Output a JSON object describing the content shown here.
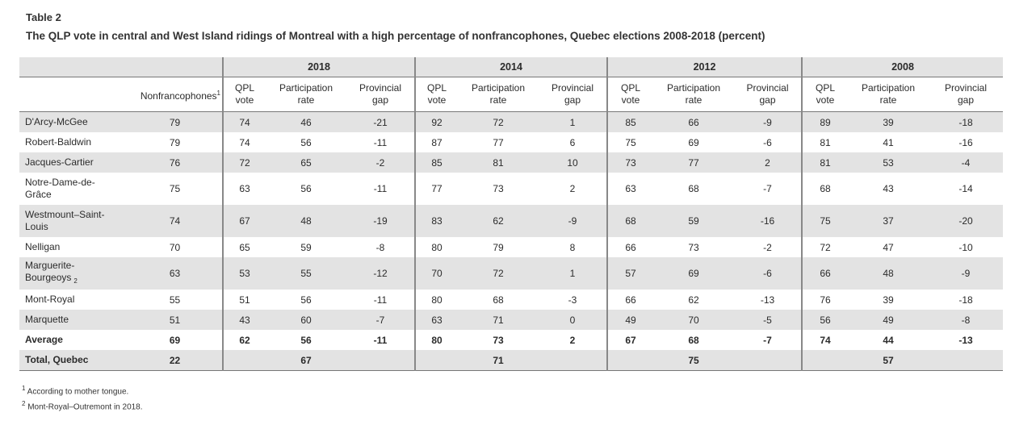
{
  "label": "Table 2",
  "title": "The QLP vote in central and West Island ridings of Montreal with a high percentage of nonfrancophones, Quebec elections 2008-2018 (percent)",
  "years": [
    "2018",
    "2014",
    "2012",
    "2008"
  ],
  "nonfranco_header": "Nonfrancophones",
  "nonfranco_sup": "1",
  "sub_headers": {
    "qpl_line1": "QPL",
    "qpl_line2": "vote",
    "part_line1": "Participation",
    "part_line2": "rate",
    "gap_line1": "Provincial",
    "gap_line2": "gap"
  },
  "rows": [
    {
      "region": "D'Arcy-McGee",
      "nf": "79",
      "v": [
        "74",
        "46",
        "-21",
        "92",
        "72",
        "1",
        "85",
        "66",
        "-9",
        "89",
        "39",
        "-18"
      ]
    },
    {
      "region": "Robert-Baldwin",
      "nf": "79",
      "v": [
        "74",
        "56",
        "-11",
        "87",
        "77",
        "6",
        "75",
        "69",
        "-6",
        "81",
        "41",
        "-16"
      ]
    },
    {
      "region": "Jacques-Cartier",
      "nf": "76",
      "v": [
        "72",
        "65",
        "-2",
        "85",
        "81",
        "10",
        "73",
        "77",
        "2",
        "81",
        "53",
        "-4"
      ]
    },
    {
      "region": "Notre-Dame-de-Grâce",
      "region_line1": "Notre-Dame-de-",
      "region_line2": "Grâce",
      "nf": "75",
      "v": [
        "63",
        "56",
        "-11",
        "77",
        "73",
        "2",
        "63",
        "68",
        "-7",
        "68",
        "43",
        "-14"
      ]
    },
    {
      "region": "Westmount–Saint-Louis",
      "region_line1": "Westmount–Saint-",
      "region_line2": "Louis",
      "nf": "74",
      "v": [
        "67",
        "48",
        "-19",
        "83",
        "62",
        "-9",
        "68",
        "59",
        "-16",
        "75",
        "37",
        "-20"
      ]
    },
    {
      "region": "Nelligan",
      "nf": "70",
      "v": [
        "65",
        "59",
        "-8",
        "80",
        "79",
        "8",
        "66",
        "73",
        "-2",
        "72",
        "47",
        "-10"
      ]
    },
    {
      "region": "Marguerite-Bourgeoys",
      "region_line1": "Marguerite-",
      "region_line2": "Bourgeoys",
      "region_sub": "2",
      "nf": "63",
      "v": [
        "53",
        "55",
        "-12",
        "70",
        "72",
        "1",
        "57",
        "69",
        "-6",
        "66",
        "48",
        "-9"
      ]
    },
    {
      "region": "Mont-Royal",
      "nf": "55",
      "v": [
        "51",
        "56",
        "-11",
        "80",
        "68",
        "-3",
        "66",
        "62",
        "-13",
        "76",
        "39",
        "-18"
      ]
    },
    {
      "region": "Marquette",
      "nf": "51",
      "v": [
        "43",
        "60",
        "-7",
        "63",
        "71",
        "0",
        "49",
        "70",
        "-5",
        "56",
        "49",
        "-8"
      ]
    },
    {
      "region": "Average",
      "nf": "69",
      "v": [
        "62",
        "56",
        "-11",
        "80",
        "73",
        "2",
        "67",
        "68",
        "-7",
        "74",
        "44",
        "-13"
      ]
    }
  ],
  "total": {
    "region": "Total, Quebec",
    "nf": "22",
    "part": [
      "67",
      "71",
      "75",
      "57"
    ]
  },
  "footnotes": {
    "fn1_num": "1",
    "fn1_text": " According to mother tongue.",
    "fn2_num": "2",
    "fn2_text": " Mont-Royal–Outremont in 2018."
  }
}
